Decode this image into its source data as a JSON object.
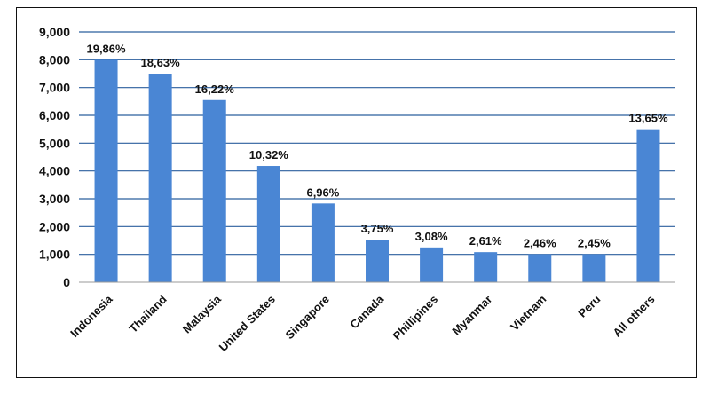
{
  "chart_data": {
    "type": "bar",
    "title": "",
    "xlabel": "",
    "ylabel": "",
    "ylim": [
      0,
      9000
    ],
    "yticks": [
      0,
      1000,
      2000,
      3000,
      4000,
      5000,
      6000,
      7000,
      8000,
      9000
    ],
    "ytick_labels": [
      "0",
      "1,000",
      "2,000",
      "3,000",
      "4,000",
      "5,000",
      "6,000",
      "7,000",
      "8,000",
      "9,000"
    ],
    "grid": true,
    "legend": "none",
    "bar_color": "#4a86d4",
    "grid_color": "#2b5f9e",
    "categories": [
      "Indonesia",
      "Thailand",
      "Malaysia",
      "United States",
      "Singapore",
      "Canada",
      "Phillipines",
      "Myanmar",
      "Vietnam",
      "Peru",
      "All others"
    ],
    "values": [
      8000,
      7500,
      6550,
      4180,
      2830,
      1530,
      1250,
      1080,
      1000,
      1000,
      5500
    ],
    "data_labels": [
      "19,86%",
      "18,63%",
      "16,22%",
      "10,32%",
      "6,96%",
      "3,75%",
      "3,08%",
      "2,61%",
      "2,46%",
      "2,45%",
      "13,65%"
    ]
  }
}
